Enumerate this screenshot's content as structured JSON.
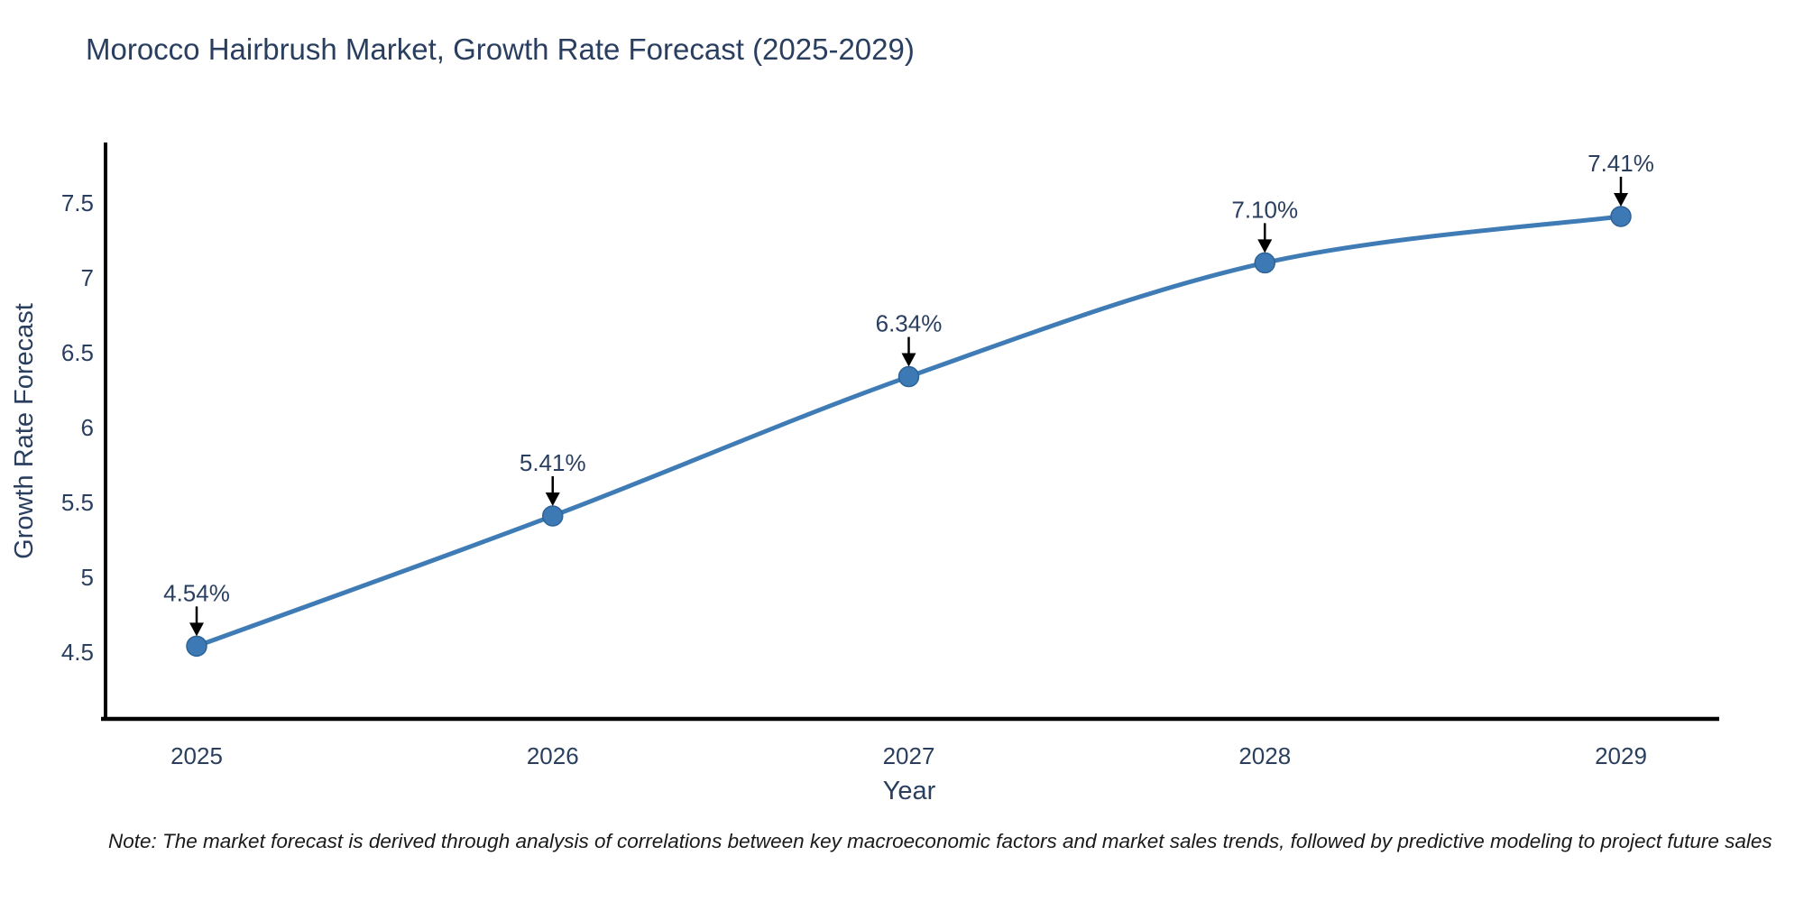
{
  "title": "Morocco Hairbrush Market, Growth Rate Forecast (2025-2029)",
  "note": "Note: The market forecast is derived through analysis of correlations between key macroeconomic factors and market sales trends, followed by predictive modeling to project future sales",
  "chart_data": {
    "type": "line",
    "line_shape": "spline",
    "x": [
      2025,
      2026,
      2027,
      2028,
      2029
    ],
    "values": [
      4.54,
      5.41,
      6.34,
      7.1,
      7.41
    ],
    "point_labels": [
      "4.54%",
      "5.41%",
      "6.34%",
      "7.10%",
      "7.41%"
    ],
    "xlabel": "Year",
    "ylabel": "Growth Rate Forecast",
    "yticks": [
      4.5,
      5,
      5.5,
      6,
      6.5,
      7,
      7.5
    ],
    "xticks": [
      "2025",
      "2026",
      "2027",
      "2028",
      "2029"
    ],
    "ylim": [
      4.05,
      7.9
    ],
    "xlim_years": [
      2024.73,
      2029.28
    ],
    "grid": false,
    "legend": "none",
    "colors": {
      "line": "#3f7cb6",
      "marker_fill": "#3c79b5",
      "marker_edge": "#2e6396",
      "axis_line": "#000000",
      "title_text": "#2a3f5f",
      "tick_text": "#2a3f5f",
      "axis_title_text": "#2a3f5f",
      "annotation_text": "#2a3f5f",
      "annotation_arrow": "#000000",
      "note_text": "#1a1a1a",
      "background": "#ffffff"
    }
  }
}
